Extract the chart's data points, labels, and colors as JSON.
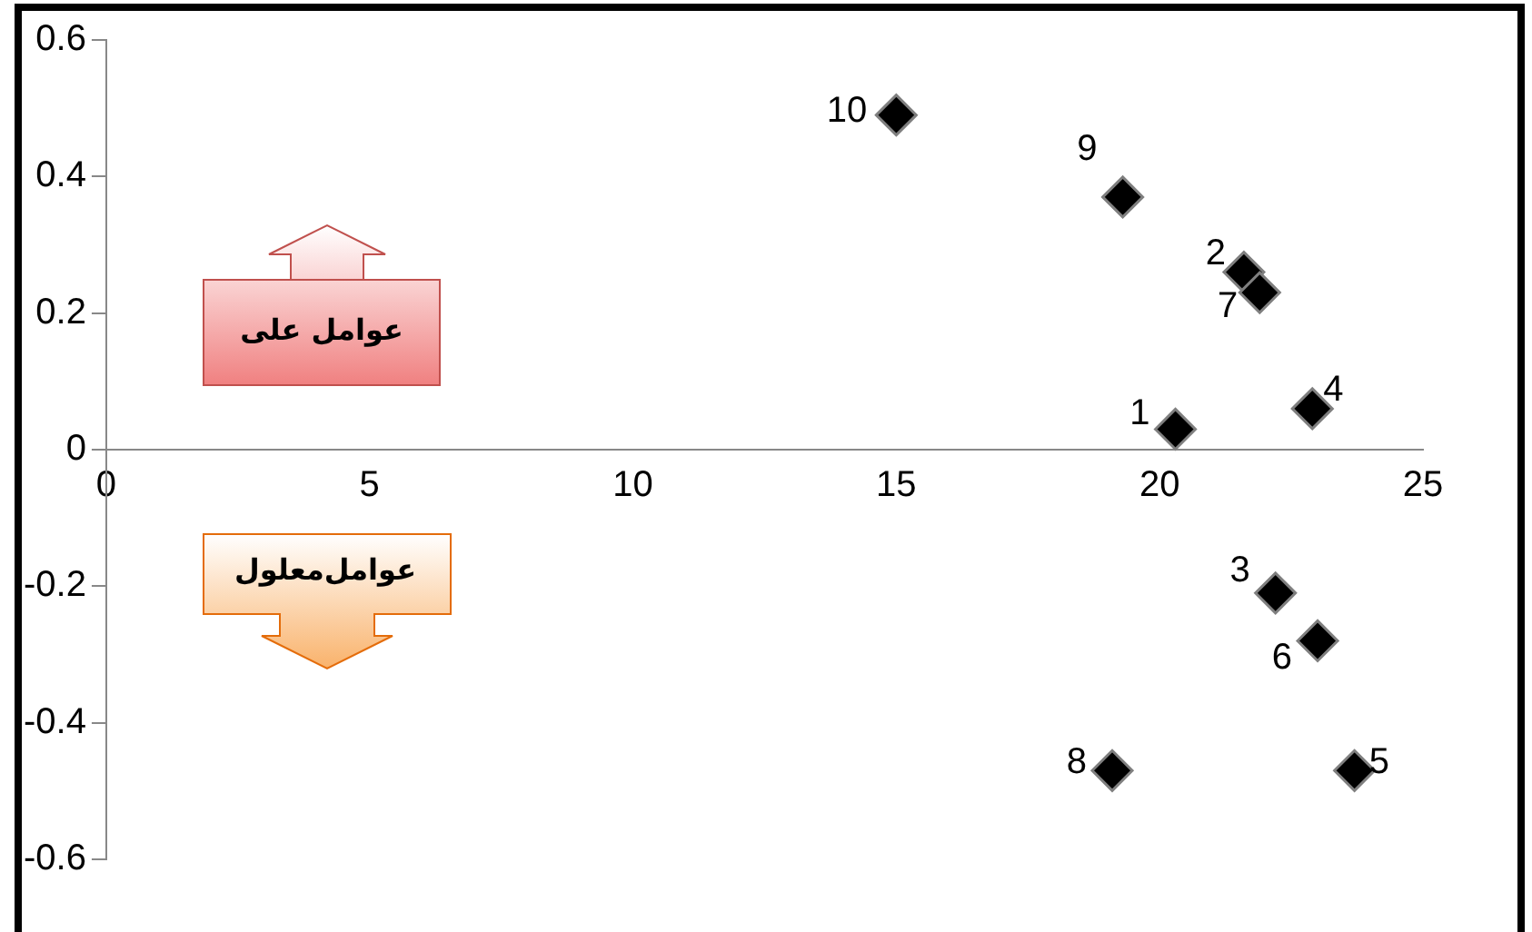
{
  "chart_data": {
    "type": "scatter",
    "x": [
      20.3,
      21.6,
      22.2,
      22.9,
      23.7,
      23,
      21.9,
      19.1,
      19.3,
      15
    ],
    "values": [
      0.03,
      0.26,
      -0.21,
      0.06,
      -0.47,
      -0.28,
      0.23,
      -0.47,
      0.37,
      0.49
    ],
    "color": "#000000",
    "marker": "diamond",
    "grid": false,
    "legend": false,
    "xlim": [
      0,
      25
    ],
    "xticks": [
      0,
      5,
      10,
      15,
      20,
      25
    ],
    "ylim": [
      -0.6,
      0.6
    ],
    "yticks": [
      -0.6,
      -0.4,
      -0.2,
      0,
      0.2,
      0.4,
      0.6
    ],
    "annotations": [
      {
        "text": "1",
        "x": 20.3,
        "y": 0.03
      },
      {
        "text": "2",
        "x": 21.6,
        "y": 0.26
      },
      {
        "text": "3",
        "x": 22.2,
        "y": -0.21
      },
      {
        "text": "4",
        "x": 22.9,
        "y": 0.06
      },
      {
        "text": "5",
        "x": 23.7,
        "y": -0.47
      },
      {
        "text": "6",
        "x": 23,
        "y": -0.28
      },
      {
        "text": "7",
        "x": 21.9,
        "y": 0.23
      },
      {
        "text": "8",
        "x": 19.1,
        "y": -0.47
      },
      {
        "text": "9",
        "x": 19.3,
        "y": 0.37
      },
      {
        "text": "10",
        "x": 15,
        "y": 0.49
      },
      "عوامل علی",
      "عوامل‌معلول"
    ]
  }
}
